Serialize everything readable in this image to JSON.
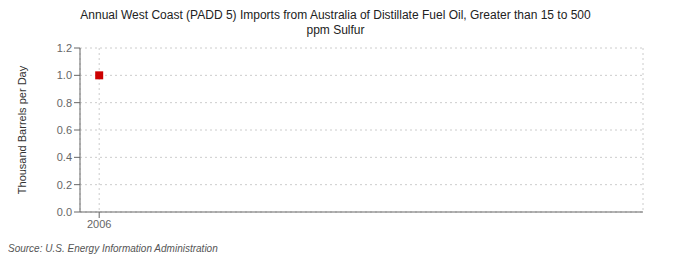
{
  "chart_data": {
    "type": "scatter",
    "title": "Annual West Coast (PADD 5) Imports from Australia of Distillate Fuel Oil, Greater than 15 to 500\nppm Sulfur",
    "ylabel": "Thousand Barrels per Day",
    "annotations": [
      "Source: U.S. Energy Information Administration"
    ],
    "x": [
      2006
    ],
    "values": [
      1.0
    ],
    "color": "#cc0000",
    "marker": "square",
    "xlim": [
      2005.4,
      2023
    ],
    "xticks": [
      2006
    ],
    "ylim": [
      0.0,
      1.2
    ],
    "yticks": [
      {
        "value": 0,
        "label": "0.0"
      },
      0.2,
      0.4,
      0.6,
      0.8,
      {
        "value": 1,
        "label": "1.0"
      },
      1.2
    ],
    "grid": true
  }
}
